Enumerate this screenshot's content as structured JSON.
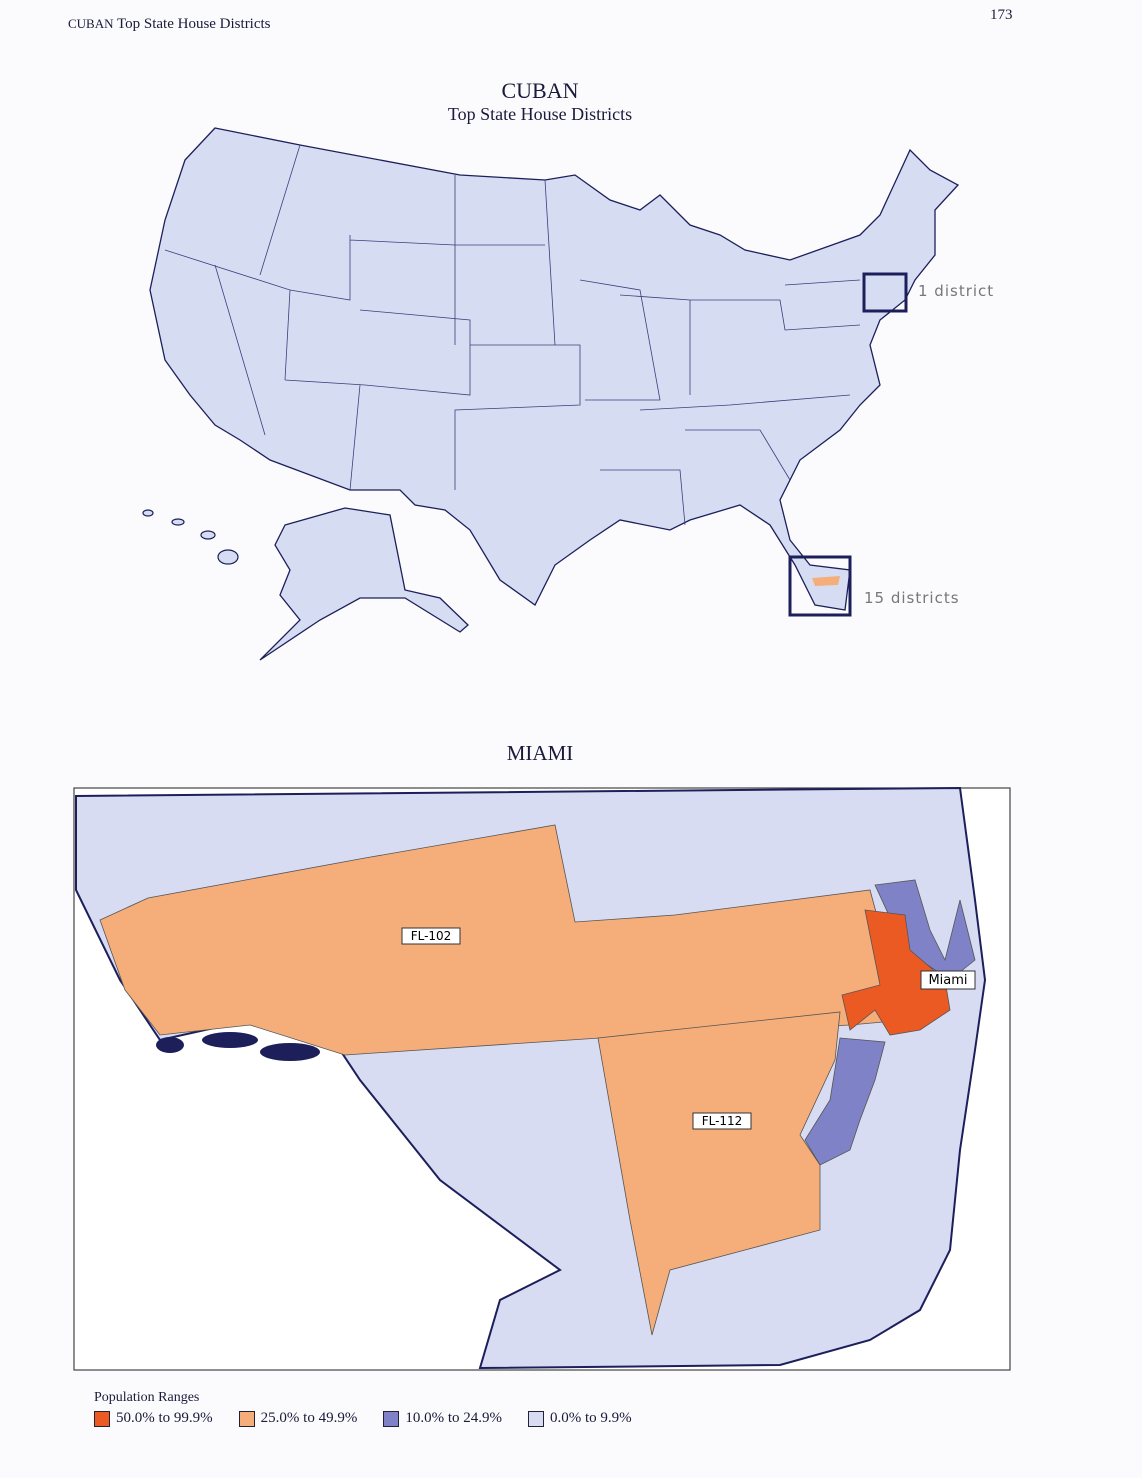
{
  "header": {
    "running_title": "CUBAN",
    "running_subtitle": "Top State House Districts",
    "page_number": "173"
  },
  "us_map": {
    "title": "CUBAN",
    "subtitle": "Top State House Districts",
    "callouts": [
      "1 district",
      "15 districts"
    ]
  },
  "miami_map": {
    "title": "MIAMI",
    "district_labels": [
      "FL-102",
      "FL-112"
    ],
    "city_label": "Miami"
  },
  "legend": {
    "title": "Population Ranges",
    "items": [
      {
        "label": "50.0% to 99.9%",
        "color": "#ec5a24"
      },
      {
        "label": "25.0% to 49.9%",
        "color": "#f5ad7a"
      },
      {
        "label": "10.0% to 24.9%",
        "color": "#7f82c6"
      },
      {
        "label": "0.0% to 9.9%",
        "color": "#d7dcf2"
      }
    ]
  }
}
